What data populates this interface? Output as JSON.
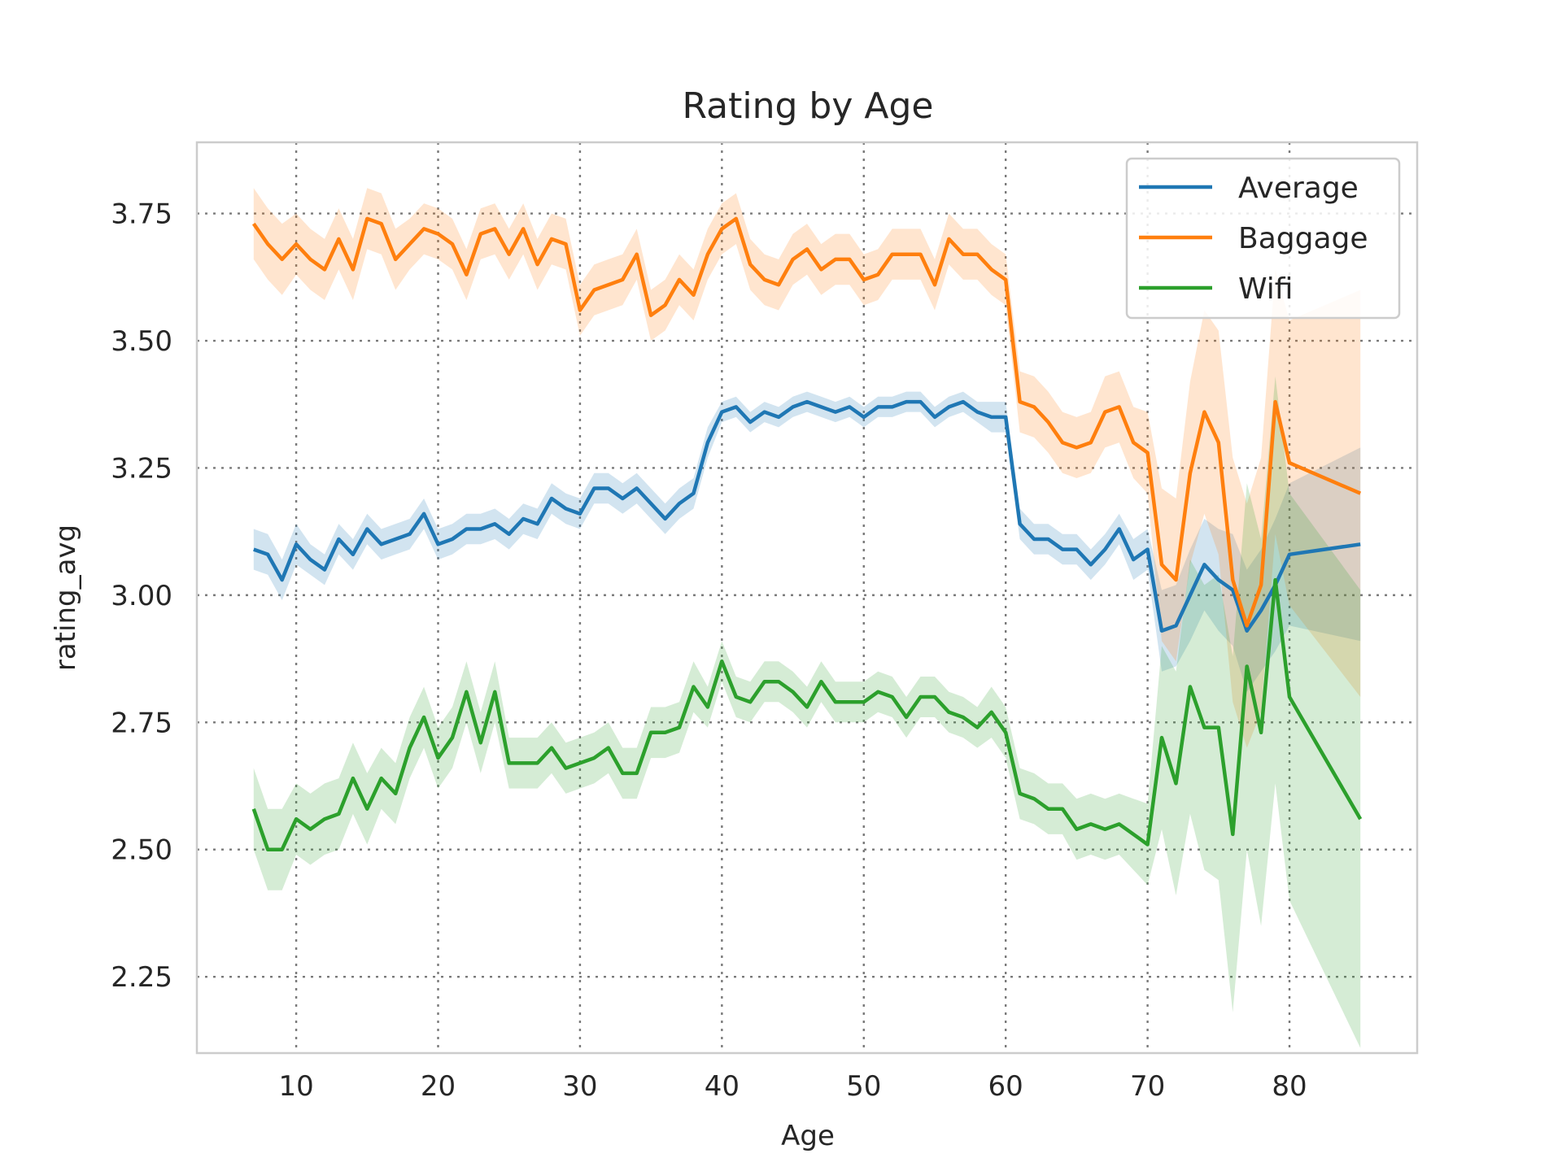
{
  "chart_data": {
    "type": "line",
    "title": "Rating by Age",
    "xlabel": "Age",
    "ylabel": "rating_avg",
    "xlim": [
      3,
      89
    ],
    "ylim": [
      2.1,
      3.89
    ],
    "xticks": [
      10,
      20,
      30,
      40,
      50,
      60,
      70,
      80
    ],
    "yticks": [
      2.25,
      2.5,
      2.75,
      3.0,
      3.25,
      3.5,
      3.75
    ],
    "ytick_labels": [
      "2.25",
      "2.50",
      "2.75",
      "3.00",
      "3.25",
      "3.50",
      "3.75"
    ],
    "grid": true,
    "legend_position": "top-right",
    "x": [
      7,
      8,
      9,
      10,
      11,
      12,
      13,
      14,
      15,
      16,
      17,
      18,
      19,
      20,
      21,
      22,
      23,
      24,
      25,
      26,
      27,
      28,
      29,
      30,
      31,
      32,
      33,
      34,
      35,
      36,
      37,
      38,
      39,
      40,
      41,
      42,
      43,
      44,
      45,
      46,
      47,
      48,
      49,
      50,
      51,
      52,
      53,
      54,
      55,
      56,
      57,
      58,
      59,
      60,
      61,
      62,
      63,
      64,
      65,
      66,
      67,
      68,
      69,
      70,
      71,
      72,
      73,
      74,
      75,
      76,
      77,
      78,
      79,
      80,
      85
    ],
    "series": [
      {
        "name": "Average",
        "color": "#1f77b4",
        "values": [
          3.09,
          3.08,
          3.03,
          3.1,
          3.07,
          3.05,
          3.11,
          3.08,
          3.13,
          3.1,
          3.11,
          3.12,
          3.16,
          3.1,
          3.11,
          3.13,
          3.13,
          3.14,
          3.12,
          3.15,
          3.14,
          3.19,
          3.17,
          3.16,
          3.21,
          3.21,
          3.19,
          3.21,
          3.18,
          3.15,
          3.18,
          3.2,
          3.3,
          3.36,
          3.37,
          3.34,
          3.36,
          3.35,
          3.37,
          3.38,
          3.37,
          3.36,
          3.37,
          3.35,
          3.37,
          3.37,
          3.38,
          3.38,
          3.35,
          3.37,
          3.38,
          3.36,
          3.35,
          3.35,
          3.14,
          3.11,
          3.11,
          3.09,
          3.09,
          3.06,
          3.09,
          3.13,
          3.07,
          3.09,
          2.93,
          2.94,
          3.0,
          3.06,
          3.03,
          3.01,
          2.93,
          2.97,
          3.02,
          3.08,
          3.1
        ],
        "ci_half": [
          0.04,
          0.04,
          0.04,
          0.04,
          0.03,
          0.03,
          0.03,
          0.03,
          0.03,
          0.03,
          0.03,
          0.03,
          0.03,
          0.03,
          0.03,
          0.03,
          0.03,
          0.03,
          0.03,
          0.03,
          0.03,
          0.03,
          0.03,
          0.03,
          0.03,
          0.03,
          0.03,
          0.03,
          0.03,
          0.03,
          0.03,
          0.03,
          0.03,
          0.02,
          0.02,
          0.02,
          0.02,
          0.02,
          0.02,
          0.02,
          0.02,
          0.02,
          0.02,
          0.02,
          0.02,
          0.02,
          0.02,
          0.02,
          0.02,
          0.02,
          0.02,
          0.02,
          0.03,
          0.03,
          0.03,
          0.03,
          0.03,
          0.03,
          0.03,
          0.03,
          0.03,
          0.03,
          0.04,
          0.04,
          0.08,
          0.08,
          0.09,
          0.09,
          0.1,
          0.11,
          0.12,
          0.12,
          0.13,
          0.14,
          0.19
        ]
      },
      {
        "name": "Baggage",
        "color": "#ff7f0e",
        "values": [
          3.73,
          3.69,
          3.66,
          3.69,
          3.66,
          3.64,
          3.7,
          3.64,
          3.74,
          3.73,
          3.66,
          3.69,
          3.72,
          3.71,
          3.69,
          3.63,
          3.71,
          3.72,
          3.67,
          3.72,
          3.65,
          3.7,
          3.69,
          3.56,
          3.6,
          3.61,
          3.62,
          3.67,
          3.55,
          3.57,
          3.62,
          3.59,
          3.67,
          3.72,
          3.74,
          3.65,
          3.62,
          3.61,
          3.66,
          3.68,
          3.64,
          3.66,
          3.66,
          3.62,
          3.63,
          3.67,
          3.67,
          3.67,
          3.61,
          3.7,
          3.67,
          3.67,
          3.64,
          3.62,
          3.38,
          3.37,
          3.34,
          3.3,
          3.29,
          3.3,
          3.36,
          3.37,
          3.3,
          3.28,
          3.06,
          3.03,
          3.24,
          3.36,
          3.3,
          3.03,
          2.94,
          3.02,
          3.38,
          3.26,
          3.2
        ],
        "ci_half": [
          0.07,
          0.07,
          0.07,
          0.06,
          0.06,
          0.06,
          0.06,
          0.06,
          0.06,
          0.06,
          0.06,
          0.05,
          0.05,
          0.05,
          0.05,
          0.05,
          0.05,
          0.05,
          0.05,
          0.05,
          0.05,
          0.05,
          0.05,
          0.05,
          0.05,
          0.05,
          0.05,
          0.05,
          0.05,
          0.05,
          0.05,
          0.05,
          0.05,
          0.05,
          0.05,
          0.05,
          0.05,
          0.05,
          0.05,
          0.05,
          0.05,
          0.05,
          0.05,
          0.05,
          0.05,
          0.05,
          0.05,
          0.05,
          0.05,
          0.05,
          0.05,
          0.05,
          0.05,
          0.05,
          0.06,
          0.06,
          0.06,
          0.06,
          0.06,
          0.06,
          0.07,
          0.07,
          0.07,
          0.08,
          0.15,
          0.16,
          0.18,
          0.2,
          0.22,
          0.24,
          0.24,
          0.25,
          0.26,
          0.28,
          0.4
        ]
      },
      {
        "name": "Wifi",
        "color": "#2ca02c",
        "values": [
          2.58,
          2.5,
          2.5,
          2.56,
          2.54,
          2.56,
          2.57,
          2.64,
          2.58,
          2.64,
          2.61,
          2.7,
          2.76,
          2.68,
          2.72,
          2.81,
          2.71,
          2.81,
          2.67,
          2.67,
          2.67,
          2.7,
          2.66,
          2.67,
          2.68,
          2.7,
          2.65,
          2.65,
          2.73,
          2.73,
          2.74,
          2.82,
          2.78,
          2.87,
          2.8,
          2.79,
          2.83,
          2.83,
          2.81,
          2.78,
          2.83,
          2.79,
          2.79,
          2.79,
          2.81,
          2.8,
          2.76,
          2.8,
          2.8,
          2.77,
          2.76,
          2.74,
          2.77,
          2.73,
          2.61,
          2.6,
          2.58,
          2.58,
          2.54,
          2.55,
          2.54,
          2.55,
          2.53,
          2.51,
          2.72,
          2.63,
          2.82,
          2.74,
          2.74,
          2.53,
          2.86,
          2.73,
          3.03,
          2.8,
          2.56
        ],
        "ci_half": [
          0.08,
          0.08,
          0.08,
          0.07,
          0.07,
          0.07,
          0.07,
          0.07,
          0.07,
          0.06,
          0.06,
          0.06,
          0.06,
          0.06,
          0.06,
          0.06,
          0.06,
          0.06,
          0.05,
          0.05,
          0.05,
          0.05,
          0.05,
          0.05,
          0.05,
          0.05,
          0.05,
          0.05,
          0.05,
          0.05,
          0.05,
          0.05,
          0.04,
          0.04,
          0.04,
          0.04,
          0.04,
          0.04,
          0.04,
          0.04,
          0.04,
          0.04,
          0.04,
          0.04,
          0.04,
          0.04,
          0.04,
          0.04,
          0.04,
          0.04,
          0.04,
          0.04,
          0.05,
          0.05,
          0.05,
          0.05,
          0.05,
          0.05,
          0.06,
          0.06,
          0.06,
          0.06,
          0.07,
          0.08,
          0.18,
          0.22,
          0.25,
          0.28,
          0.3,
          0.35,
          0.36,
          0.38,
          0.4,
          0.4,
          0.45
        ]
      }
    ]
  }
}
